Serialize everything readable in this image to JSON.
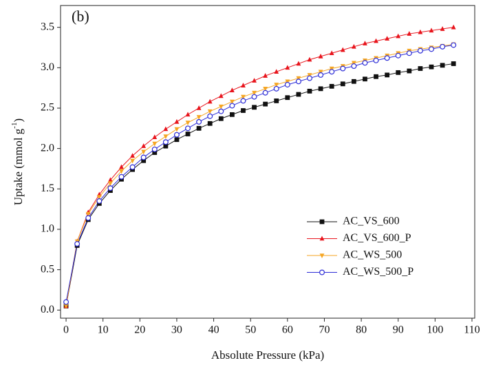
{
  "chart_data": {
    "type": "line",
    "annotation": "(b)",
    "xlabel": "Absolute Pressure (kPa)",
    "ylabel": [
      "Uptake (mmol g",
      "-1",
      ")"
    ],
    "x": [
      0,
      3,
      6,
      9,
      12,
      15,
      18,
      21,
      24,
      27,
      30,
      33,
      36,
      39,
      42,
      45,
      48,
      51,
      54,
      57,
      60,
      63,
      66,
      69,
      72,
      75,
      78,
      81,
      84,
      87,
      90,
      93,
      96,
      99,
      102,
      105
    ],
    "series": [
      {
        "name": "AC_VS_600",
        "color": "#111111",
        "marker": "square",
        "values": [
          0.05,
          0.8,
          1.12,
          1.32,
          1.48,
          1.62,
          1.74,
          1.85,
          1.95,
          2.03,
          2.11,
          2.18,
          2.25,
          2.31,
          2.37,
          2.42,
          2.47,
          2.51,
          2.55,
          2.59,
          2.63,
          2.67,
          2.71,
          2.74,
          2.77,
          2.8,
          2.83,
          2.86,
          2.89,
          2.91,
          2.94,
          2.96,
          2.99,
          3.01,
          3.03,
          3.05
        ]
      },
      {
        "name": "AC_VS_600_P",
        "color": "#e8141c",
        "marker": "triangle-up",
        "values": [
          0.05,
          0.85,
          1.21,
          1.43,
          1.61,
          1.77,
          1.91,
          2.03,
          2.14,
          2.24,
          2.33,
          2.42,
          2.5,
          2.58,
          2.65,
          2.72,
          2.78,
          2.84,
          2.9,
          2.95,
          3.0,
          3.05,
          3.1,
          3.14,
          3.18,
          3.22,
          3.26,
          3.3,
          3.33,
          3.36,
          3.39,
          3.42,
          3.44,
          3.46,
          3.48,
          3.5
        ]
      },
      {
        "name": "AC_WS_500",
        "color": "#f5a623",
        "marker": "triangle-down",
        "values": [
          0.05,
          0.85,
          1.19,
          1.4,
          1.57,
          1.72,
          1.85,
          1.96,
          2.06,
          2.15,
          2.24,
          2.32,
          2.39,
          2.46,
          2.52,
          2.58,
          2.64,
          2.69,
          2.74,
          2.79,
          2.83,
          2.87,
          2.91,
          2.95,
          2.99,
          3.02,
          3.06,
          3.09,
          3.12,
          3.15,
          3.18,
          3.21,
          3.23,
          3.25,
          3.27,
          3.29
        ]
      },
      {
        "name": "AC_WS_500_P",
        "color": "#2a2ad6",
        "marker": "circle-open",
        "values": [
          0.1,
          0.82,
          1.14,
          1.35,
          1.51,
          1.65,
          1.77,
          1.89,
          1.99,
          2.08,
          2.17,
          2.25,
          2.33,
          2.4,
          2.46,
          2.53,
          2.59,
          2.64,
          2.69,
          2.74,
          2.79,
          2.83,
          2.87,
          2.91,
          2.95,
          2.99,
          3.02,
          3.06,
          3.09,
          3.12,
          3.15,
          3.18,
          3.21,
          3.23,
          3.26,
          3.28
        ]
      }
    ],
    "xlim": [
      -1.5,
      110.75
    ],
    "ylim": [
      -0.1,
      3.77
    ],
    "xticks": [
      0,
      10,
      20,
      30,
      40,
      50,
      60,
      70,
      80,
      90,
      100,
      110
    ],
    "yticks": [
      {
        "value": 0,
        "label": "0.0"
      },
      0.5,
      {
        "value": 1,
        "label": "1.0"
      },
      1.5,
      {
        "value": 2,
        "label": "2.0"
      },
      2.5,
      {
        "value": 3,
        "label": "3.0"
      },
      3.5
    ],
    "legend": "lower right",
    "grid": false
  }
}
